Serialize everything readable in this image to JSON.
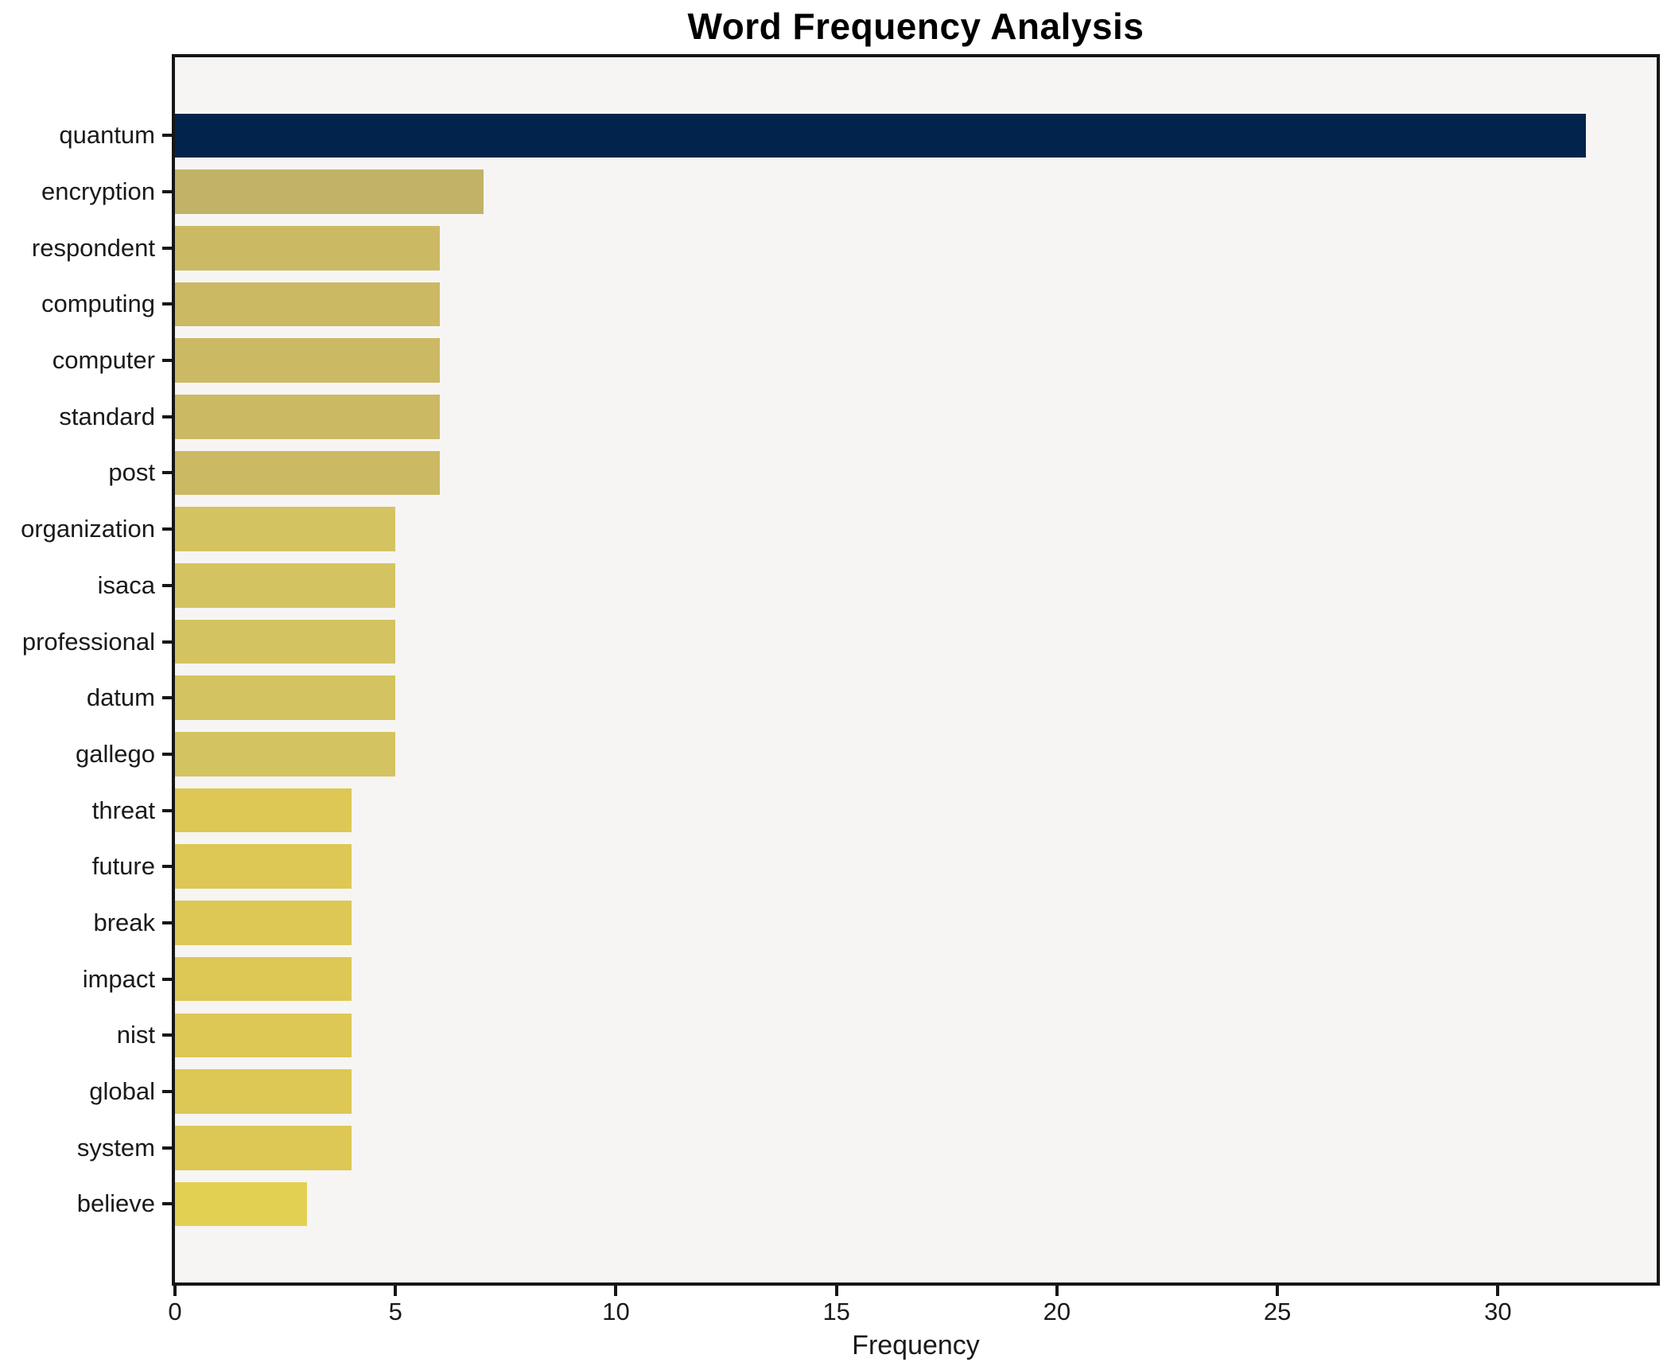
{
  "title": "Word Frequency Analysis",
  "xlabel": "Frequency",
  "colors": {
    "figure_bg": "#ffffff",
    "plot_bg": "#f6f5f3",
    "spine": "#161616",
    "text": "#1a1a1a",
    "top_bar": "#02234c",
    "gold_dark": "#c2b266",
    "gold_light": "#e2d052"
  },
  "chart_data": {
    "type": "bar",
    "orientation": "horizontal",
    "title": "Word Frequency Analysis",
    "xlabel": "Frequency",
    "ylabel": "",
    "grid": false,
    "legend": false,
    "xlim": [
      0,
      33.6
    ],
    "xticks": [
      0,
      5,
      10,
      15,
      20,
      25,
      30
    ],
    "categories": [
      "quantum",
      "encryption",
      "respondent",
      "computing",
      "computer",
      "standard",
      "post",
      "organization",
      "isaca",
      "professional",
      "datum",
      "gallego",
      "threat",
      "future",
      "break",
      "impact",
      "nist",
      "global",
      "system",
      "believe"
    ],
    "values": [
      32,
      7,
      6,
      6,
      6,
      6,
      6,
      5,
      5,
      5,
      5,
      5,
      4,
      4,
      4,
      4,
      4,
      4,
      4,
      3
    ],
    "bar_colors": [
      "#02234c",
      "#c2b266",
      "#ccb963",
      "#ccb963",
      "#ccb963",
      "#ccb963",
      "#ccb963",
      "#d4c361",
      "#d4c361",
      "#d4c361",
      "#d4c361",
      "#d4c361",
      "#ddc755",
      "#ddc755",
      "#ddc755",
      "#ddc755",
      "#ddc755",
      "#ddc755",
      "#ddc755",
      "#e2d052"
    ]
  }
}
